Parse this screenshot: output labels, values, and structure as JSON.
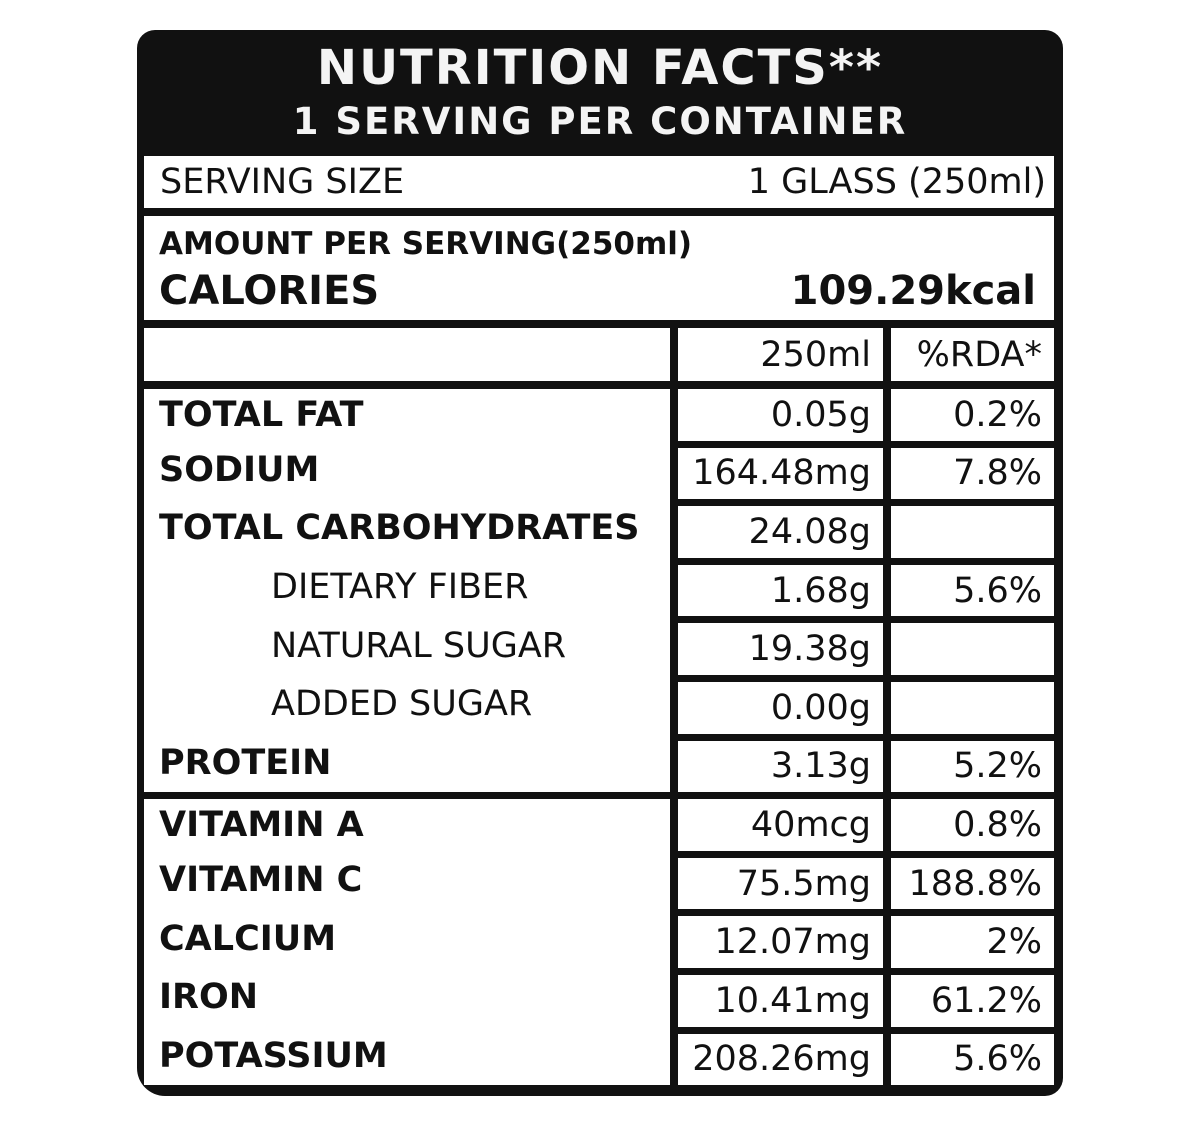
{
  "header": {
    "title": "NUTRITION FACTS**",
    "subtitle": "1 SERVING PER CONTAINER"
  },
  "serving": {
    "label": "SERVING SIZE",
    "value": "1 GLASS (250ml)"
  },
  "amount": {
    "per_serving_label": "AMOUNT PER SERVING(250ml)",
    "calories_label": "CALORIES",
    "calories_value": "109.29kcal"
  },
  "columns": {
    "amount_header": "250ml",
    "rda_header": "%RDA*"
  },
  "rows": [
    {
      "name": "TOTAL FAT",
      "amount": "0.05g",
      "rda": "0.2%"
    },
    {
      "name": "SODIUM",
      "amount": "164.48mg",
      "rda": "7.8%"
    },
    {
      "name": "TOTAL CARBOHYDRATES",
      "amount": "24.08g",
      "rda": ""
    },
    {
      "name": "DIETARY FIBER",
      "amount": "1.68g",
      "rda": "5.6%"
    },
    {
      "name": "NATURAL SUGAR",
      "amount": "19.38g",
      "rda": ""
    },
    {
      "name": "ADDED SUGAR",
      "amount": "0.00g",
      "rda": ""
    },
    {
      "name": "PROTEIN",
      "amount": "3.13g",
      "rda": "5.2%"
    },
    {
      "name": "VITAMIN A",
      "amount": "40mcg",
      "rda": "0.8%"
    },
    {
      "name": "VITAMIN C",
      "amount": "75.5mg",
      "rda": "188.8%"
    },
    {
      "name": "CALCIUM",
      "amount": "12.07mg",
      "rda": "2%"
    },
    {
      "name": "IRON",
      "amount": "10.41mg",
      "rda": "61.2%"
    },
    {
      "name": "POTASSIUM",
      "amount": "208.26mg",
      "rda": "5.6%"
    }
  ]
}
